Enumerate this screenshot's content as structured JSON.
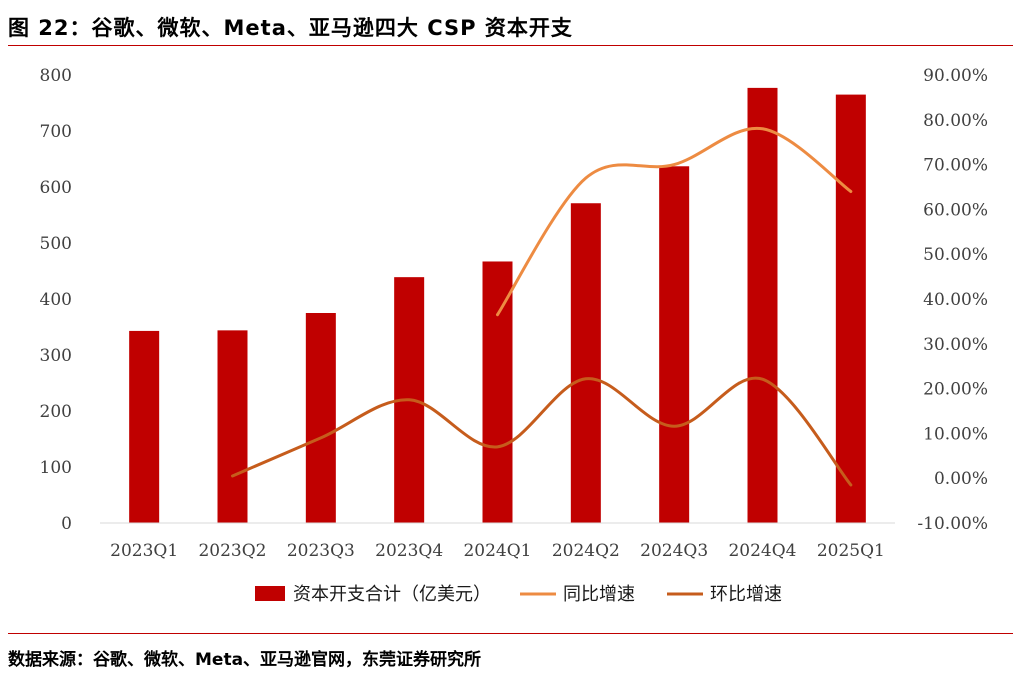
{
  "figure": {
    "title": "图 22：谷歌、微软、Meta、亚马逊四大 CSP 资本开支",
    "source": "数据来源：谷歌、微软、Meta、亚马逊官网，东莞证券研究所"
  },
  "chart_data": {
    "type": "bar+line",
    "categories": [
      "2023Q1",
      "2023Q2",
      "2023Q3",
      "2023Q4",
      "2024Q1",
      "2024Q2",
      "2024Q3",
      "2024Q4",
      "2025Q1"
    ],
    "series": [
      {
        "name": "资本开支合计（亿美元）",
        "type": "bar",
        "axis": "left",
        "color": "#c00000",
        "values": [
          343,
          344,
          375,
          439,
          467,
          571,
          637,
          777,
          765
        ]
      },
      {
        "name": "同比增速",
        "type": "line",
        "axis": "right",
        "color": "#ed8b42",
        "values": [
          null,
          null,
          null,
          null,
          36.5,
          67.0,
          70.0,
          78.0,
          64.0
        ]
      },
      {
        "name": "环比增速",
        "type": "line",
        "axis": "right",
        "color": "#c65c1c",
        "values": [
          null,
          0.5,
          9.0,
          17.5,
          7.0,
          22.2,
          11.6,
          22.1,
          -1.5
        ]
      }
    ],
    "y_left": {
      "min": 0,
      "max": 800,
      "step": 100,
      "ticks": [
        "0",
        "100",
        "200",
        "300",
        "400",
        "500",
        "600",
        "700",
        "800"
      ]
    },
    "y_right": {
      "min": -10,
      "max": 90,
      "step": 10,
      "ticks": [
        "-10.00%",
        "0.00%",
        "10.00%",
        "20.00%",
        "30.00%",
        "40.00%",
        "50.00%",
        "60.00%",
        "70.00%",
        "80.00%",
        "90.00%"
      ]
    },
    "legend": {
      "position": "bottom"
    },
    "grid": false
  }
}
